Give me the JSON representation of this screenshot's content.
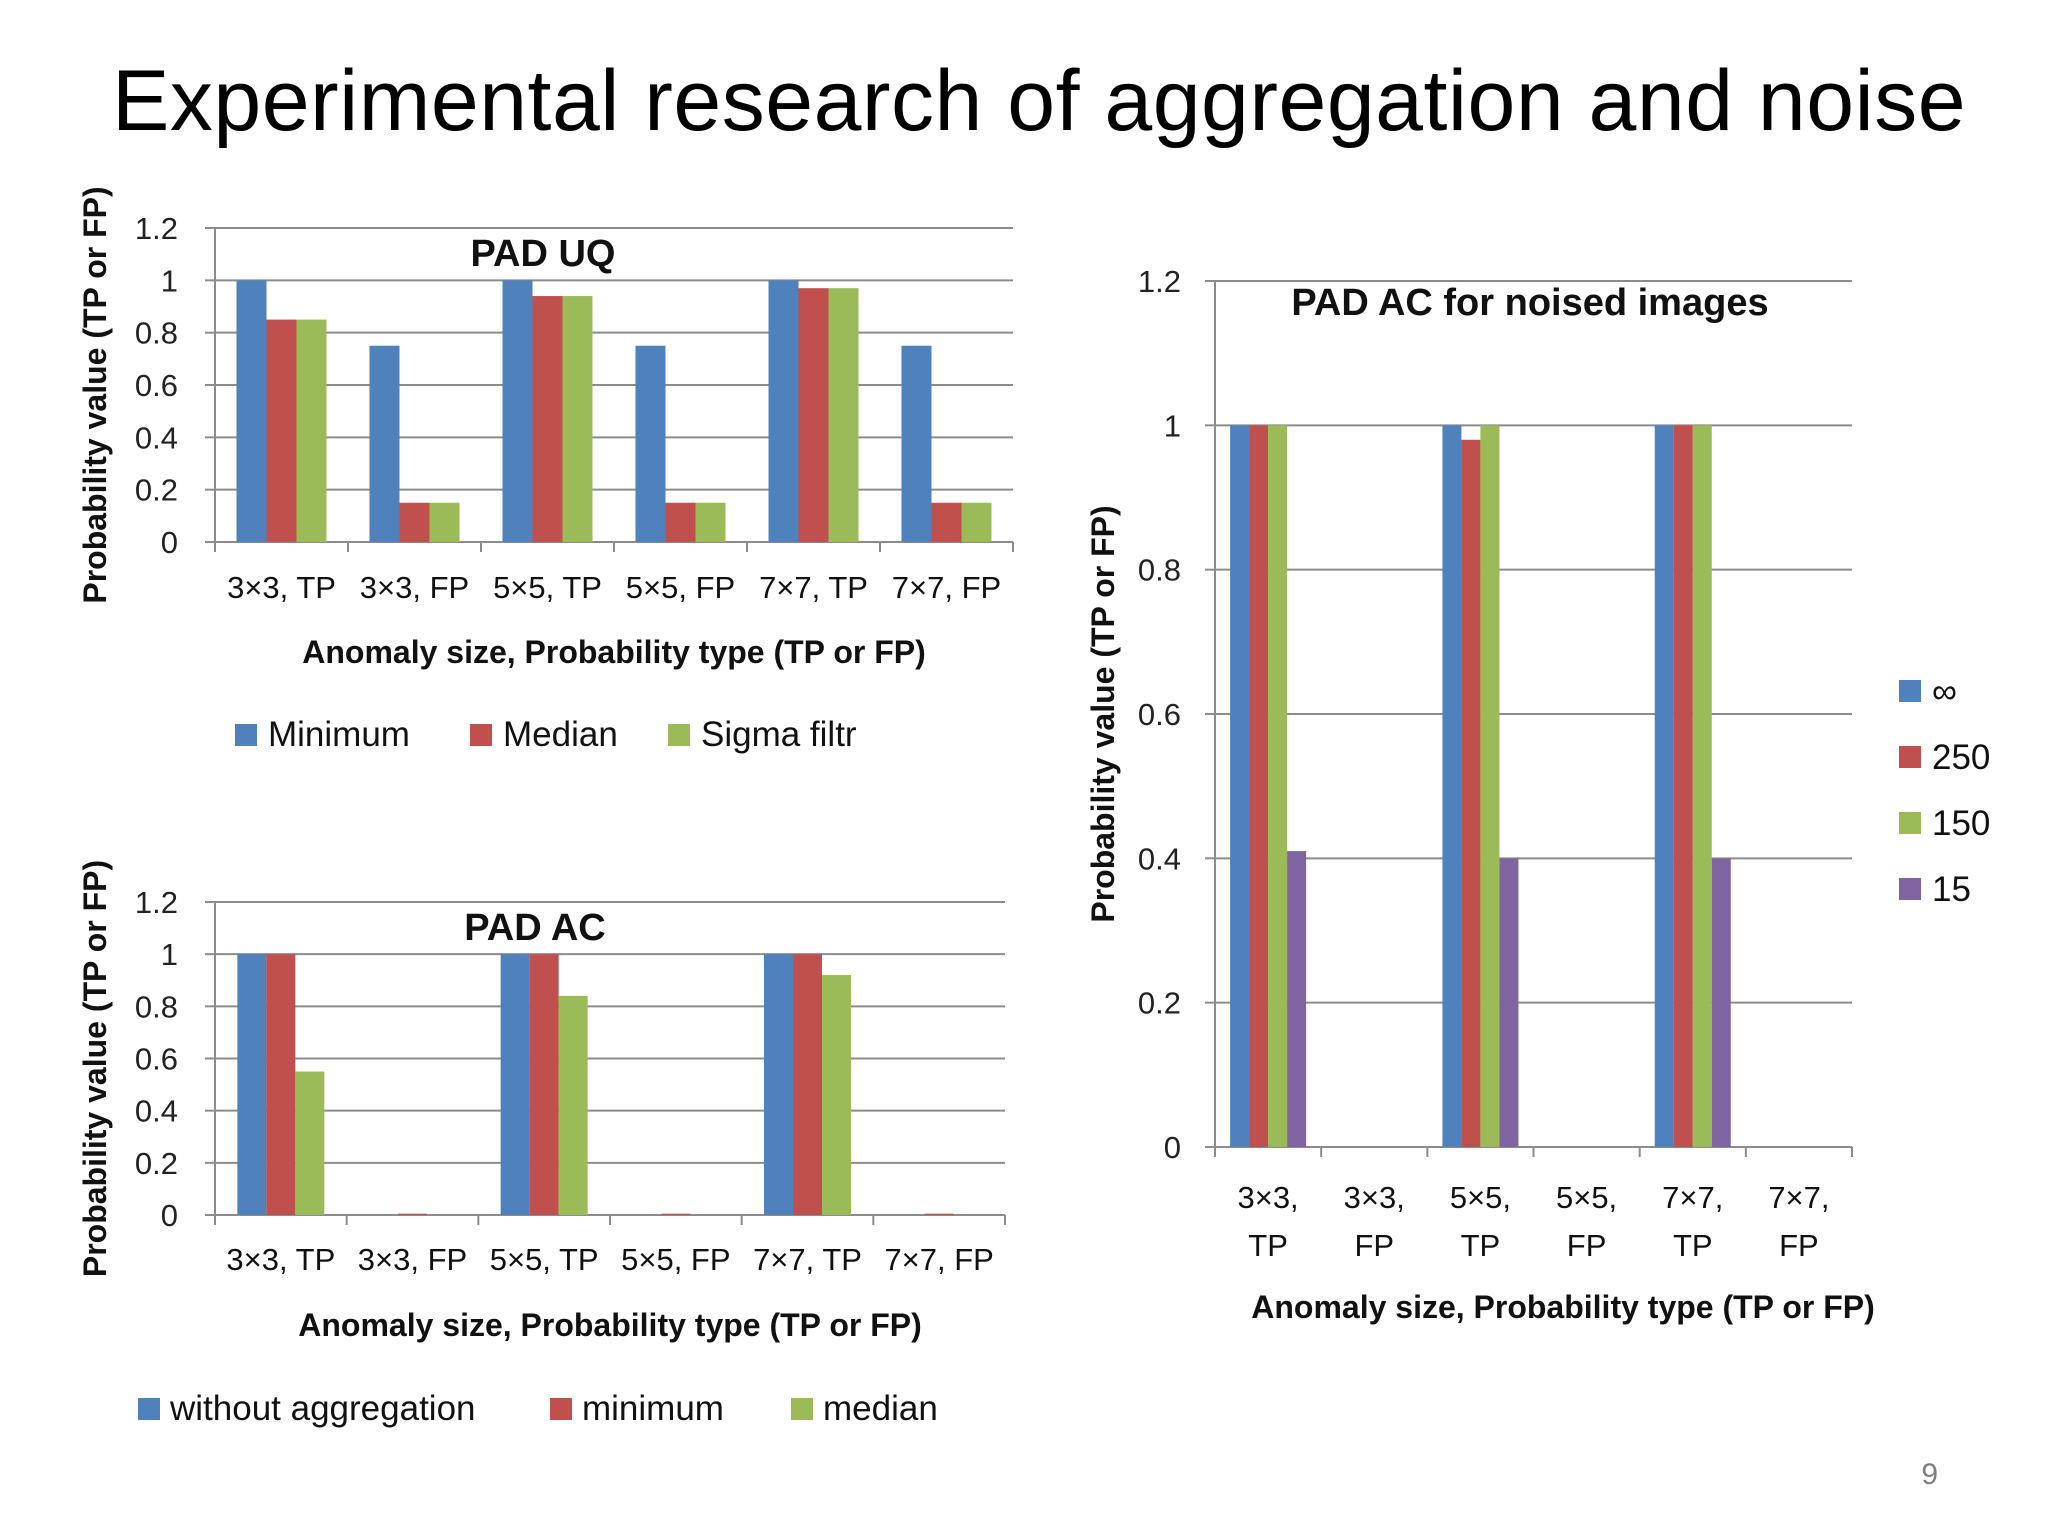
{
  "slide": {
    "title": "Experimental research of aggregation and noise",
    "page_number": "9"
  },
  "chart_data": [
    {
      "id": "pad-uq",
      "type": "bar",
      "title": "PAD UQ",
      "xlabel": "Anomaly size, Probability type (TP or FP)",
      "ylabel": "Probability value (TP or FP)",
      "ylim": [
        0,
        1.2
      ],
      "yticks": [
        "0",
        "0.2",
        "0.4",
        "0.6",
        "0.8",
        "1",
        "1.2"
      ],
      "grid": true,
      "legend_position": "bottom",
      "categories": [
        "3×3, TP",
        "3×3, FP",
        "5×5, TP",
        "5×5, FP",
        "7×7, TP",
        "7×7, FP"
      ],
      "series": [
        {
          "name": "Minimum",
          "color": "#4F81BD",
          "values": [
            1.0,
            0.75,
            1.0,
            0.75,
            1.0,
            0.75
          ]
        },
        {
          "name": "Median",
          "color": "#C0504D",
          "values": [
            0.85,
            0.15,
            0.94,
            0.15,
            0.97,
            0.15
          ]
        },
        {
          "name": "Sigma filtr",
          "color": "#9BBB59",
          "values": [
            0.85,
            0.15,
            0.94,
            0.15,
            0.97,
            0.15
          ]
        }
      ]
    },
    {
      "id": "pad-ac",
      "type": "bar",
      "title": "PAD AC",
      "xlabel": "Anomaly size, Probability type (TP or FP)",
      "ylabel": "Probability value (TP or FP)",
      "ylim": [
        0,
        1.2
      ],
      "yticks": [
        "0",
        "0.2",
        "0.4",
        "0.6",
        "0.8",
        "1",
        "1.2"
      ],
      "grid": true,
      "legend_position": "bottom",
      "categories": [
        "3×3, TP",
        "3×3, FP",
        "5×5, TP",
        "5×5, FP",
        "7×7, TP",
        "7×7, FP"
      ],
      "series": [
        {
          "name": "without aggregation",
          "color": "#4F81BD",
          "values": [
            1.0,
            0.0,
            1.0,
            0.0,
            1.0,
            0.0
          ]
        },
        {
          "name": "minimum",
          "color": "#C0504D",
          "values": [
            1.0,
            0.005,
            1.0,
            0.005,
            1.0,
            0.005
          ]
        },
        {
          "name": "median",
          "color": "#9BBB59",
          "values": [
            0.55,
            0.0,
            0.84,
            0.0,
            0.92,
            0.0
          ]
        }
      ]
    },
    {
      "id": "pad-ac-noised",
      "type": "bar",
      "title": "PAD AC for noised images",
      "xlabel": "Anomaly size, Probability type (TP or FP)",
      "ylabel": "Probability value (TP or FP)",
      "ylim": [
        0,
        1.2
      ],
      "yticks": [
        "0",
        "0.2",
        "0.4",
        "0.6",
        "0.8",
        "1",
        "1.2"
      ],
      "grid": true,
      "legend_position": "right",
      "categories": [
        "3×3, TP",
        "3×3, FP",
        "5×5, TP",
        "5×5, FP",
        "7×7, TP",
        "7×7, FP"
      ],
      "category_lines": [
        [
          "3×3,",
          "TP"
        ],
        [
          "3×3,",
          "FP"
        ],
        [
          "5×5,",
          "TP"
        ],
        [
          "5×5,",
          "FP"
        ],
        [
          "7×7,",
          "TP"
        ],
        [
          "7×7,",
          "FP"
        ]
      ],
      "series": [
        {
          "name": "∞",
          "color": "#4F81BD",
          "values": [
            1.0,
            0.0,
            1.0,
            0.0,
            1.0,
            0.0
          ]
        },
        {
          "name": "250",
          "color": "#C0504D",
          "values": [
            1.0,
            0.0,
            0.98,
            0.0,
            1.0,
            0.0
          ]
        },
        {
          "name": "150",
          "color": "#9BBB59",
          "values": [
            1.0,
            0.0,
            1.0,
            0.0,
            1.0,
            0.0
          ]
        },
        {
          "name": "15",
          "color": "#8064A2",
          "values": [
            0.41,
            0.0,
            0.4,
            0.0,
            0.4,
            0.0
          ]
        }
      ]
    }
  ]
}
